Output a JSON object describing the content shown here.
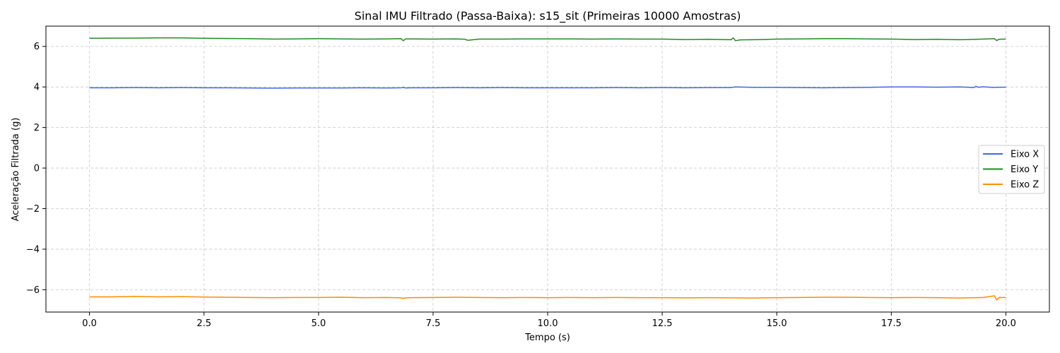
{
  "chart_data": {
    "type": "line",
    "title": "Sinal IMU Filtrado (Passa-Baixa): s15_sit (Primeiras 10000 Amostras)",
    "xlabel": "Tempo (s)",
    "ylabel": "Aceleração Filtrada (g)",
    "xlim": [
      -0.95,
      20.95
    ],
    "ylim": [
      -7.1,
      7.0
    ],
    "xticks": [
      0,
      2.5,
      5,
      7.5,
      10,
      12.5,
      15,
      17.5,
      20
    ],
    "xtick_labels": [
      "0.0",
      "2.5",
      "5.0",
      "7.5",
      "10.0",
      "12.5",
      "15.0",
      "17.5",
      "20.0"
    ],
    "yticks": [
      -6,
      -4,
      -2,
      0,
      2,
      4,
      6
    ],
    "ytick_labels": [
      "−6",
      "−4",
      "−2",
      "0",
      "2",
      "4",
      "6"
    ],
    "grid": true,
    "legend_position": "center-right",
    "series": [
      {
        "name": "Eixo X",
        "color": "#4169e1",
        "x": [
          0,
          0.5,
          1,
          1.5,
          2,
          2.5,
          3,
          3.5,
          4,
          4.5,
          5,
          5.5,
          6,
          6.5,
          6.8,
          6.85,
          6.9,
          7,
          7.5,
          8,
          8.5,
          9,
          9.5,
          10,
          10.5,
          11,
          11.5,
          12,
          12.5,
          13,
          13.5,
          14,
          14.1,
          14.5,
          15,
          15.5,
          16,
          16.5,
          17,
          17.5,
          18,
          18.5,
          19,
          19.3,
          19.35,
          19.4,
          19.5,
          19.7,
          20
        ],
        "y": [
          3.96,
          3.96,
          3.97,
          3.96,
          3.97,
          3.96,
          3.96,
          3.95,
          3.94,
          3.95,
          3.95,
          3.95,
          3.96,
          3.95,
          3.96,
          3.98,
          3.95,
          3.96,
          3.96,
          3.97,
          3.96,
          3.97,
          3.96,
          3.96,
          3.96,
          3.96,
          3.97,
          3.96,
          3.97,
          3.96,
          3.97,
          3.97,
          4.0,
          3.98,
          3.98,
          3.97,
          3.96,
          3.97,
          3.98,
          4.0,
          4.0,
          3.99,
          4.0,
          3.97,
          4.03,
          3.98,
          4.01,
          3.98,
          3.99
        ]
      },
      {
        "name": "Eixo Y",
        "color": "#228b22",
        "x": [
          0,
          0.5,
          1,
          1.5,
          2,
          2.5,
          3,
          3.5,
          4,
          4.5,
          5,
          5.5,
          6,
          6.5,
          6.8,
          6.85,
          6.9,
          7,
          7.5,
          8,
          8.2,
          8.25,
          8.5,
          9,
          9.5,
          10,
          10.5,
          11,
          11.5,
          12,
          12.5,
          13,
          13.5,
          14,
          14.05,
          14.1,
          14.2,
          14.5,
          15,
          15.5,
          16,
          16.5,
          17,
          17.5,
          18,
          18.5,
          19,
          19.5,
          19.75,
          19.8,
          19.85,
          20
        ],
        "y": [
          6.4,
          6.41,
          6.41,
          6.42,
          6.42,
          6.4,
          6.39,
          6.38,
          6.36,
          6.37,
          6.38,
          6.37,
          6.36,
          6.37,
          6.38,
          6.28,
          6.37,
          6.37,
          6.36,
          6.37,
          6.35,
          6.3,
          6.36,
          6.36,
          6.37,
          6.37,
          6.37,
          6.36,
          6.37,
          6.36,
          6.36,
          6.34,
          6.35,
          6.33,
          6.42,
          6.28,
          6.32,
          6.33,
          6.36,
          6.37,
          6.38,
          6.38,
          6.37,
          6.36,
          6.34,
          6.35,
          6.33,
          6.36,
          6.38,
          6.29,
          6.35,
          6.36
        ]
      },
      {
        "name": "Eixo Z",
        "color": "#ff8c00",
        "x": [
          0,
          0.5,
          1,
          1.5,
          2,
          2.5,
          3,
          3.5,
          4,
          4.5,
          5,
          5.5,
          6,
          6.5,
          6.8,
          6.85,
          6.9,
          7,
          7.5,
          8,
          8.5,
          9,
          9.5,
          10,
          10.5,
          11,
          11.5,
          12,
          12.5,
          13,
          13.5,
          14,
          14.5,
          15,
          15.5,
          16,
          16.5,
          17,
          17.5,
          18,
          18.5,
          19,
          19.5,
          19.75,
          19.8,
          19.85,
          20
        ],
        "y": [
          -6.35,
          -6.35,
          -6.33,
          -6.35,
          -6.34,
          -6.36,
          -6.37,
          -6.38,
          -6.39,
          -6.38,
          -6.38,
          -6.37,
          -6.39,
          -6.38,
          -6.4,
          -6.43,
          -6.4,
          -6.39,
          -6.38,
          -6.37,
          -6.38,
          -6.39,
          -6.38,
          -6.39,
          -6.38,
          -6.39,
          -6.38,
          -6.39,
          -6.39,
          -6.4,
          -6.39,
          -6.4,
          -6.41,
          -6.39,
          -6.38,
          -6.37,
          -6.37,
          -6.38,
          -6.39,
          -6.38,
          -6.39,
          -6.41,
          -6.38,
          -6.3,
          -6.51,
          -6.38,
          -6.38
        ]
      }
    ]
  }
}
